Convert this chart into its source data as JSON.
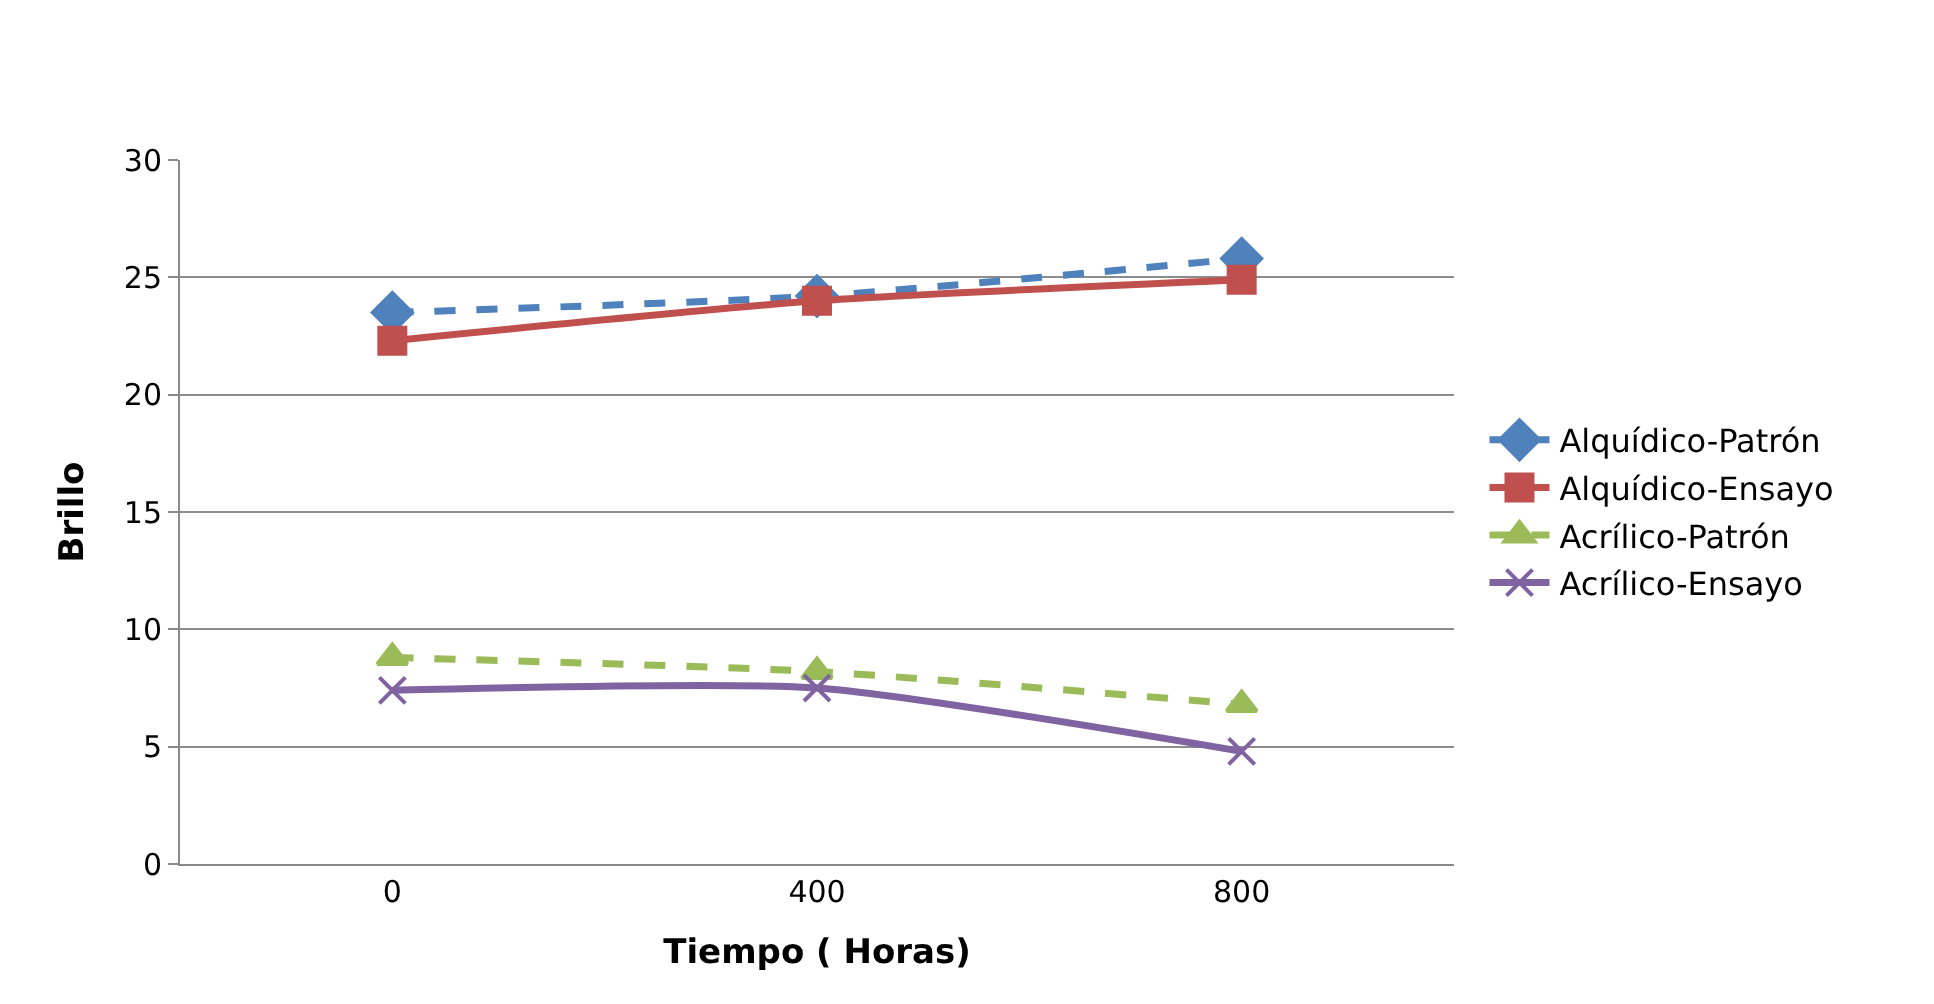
{
  "chart_data": {
    "type": "line",
    "xlabel": "Tiempo ( Horas)",
    "ylabel": "Brillo",
    "categories": [
      "0",
      "400",
      "800"
    ],
    "series": [
      {
        "name": "Alquídico-Patrón",
        "color": "#4f81bd",
        "values": [
          23.5,
          24.2,
          25.8
        ],
        "marker": "diamond",
        "line_style": "dashed"
      },
      {
        "name": "Alquídico-Ensayo",
        "color": "#c0504d",
        "values": [
          22.3,
          24.0,
          24.9
        ],
        "marker": "square",
        "line_style": "solid"
      },
      {
        "name": "Acrílico-Patrón",
        "color": "#9bbb59",
        "values": [
          8.8,
          8.2,
          6.8
        ],
        "marker": "triangle",
        "line_style": "dashed"
      },
      {
        "name": "Acrílico-Ensayo",
        "color": "#8064a2",
        "values": [
          7.4,
          7.5,
          4.8
        ],
        "marker": "cross",
        "line_style": "solid"
      }
    ],
    "ylim": [
      0,
      30
    ],
    "yticks": [
      0,
      5,
      10,
      15,
      20,
      25,
      30
    ],
    "grid": "y",
    "legend": "right"
  }
}
